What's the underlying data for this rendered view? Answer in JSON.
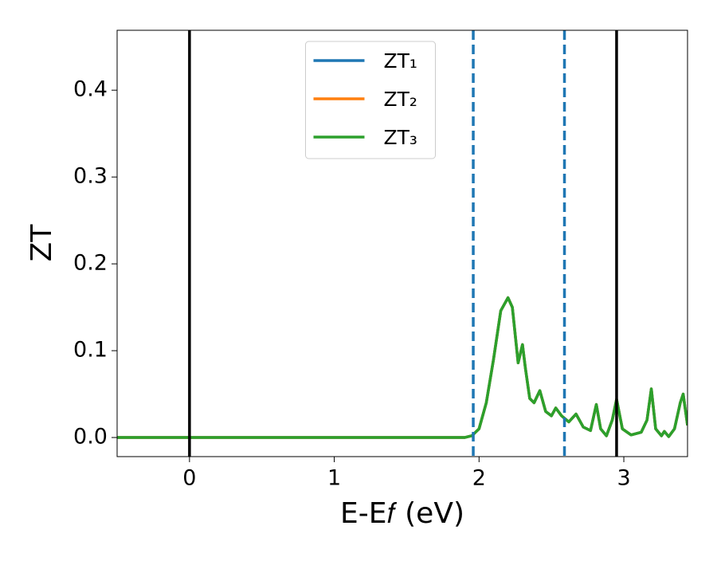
{
  "chart_data": {
    "type": "line",
    "xlabel": "E-E𝑓 (eV)",
    "ylabel": "ZT",
    "x": [
      -0.5,
      0,
      0.5,
      1,
      1.5,
      1.8,
      1.9,
      1.95,
      2.0,
      2.05,
      2.1,
      2.15,
      2.2,
      2.23,
      2.27,
      2.3,
      2.32,
      2.35,
      2.38,
      2.42,
      2.46,
      2.5,
      2.53,
      2.57,
      2.62,
      2.67,
      2.72,
      2.77,
      2.81,
      2.84,
      2.88,
      2.92,
      2.95,
      2.99,
      3.05,
      3.12,
      3.16,
      3.19,
      3.22,
      3.26,
      3.28,
      3.31,
      3.35,
      3.39,
      3.41,
      3.44
    ],
    "series": [
      {
        "name": "ZT₁",
        "color": "#1f77b4",
        "values": [
          0,
          0,
          0,
          0,
          0,
          0,
          0,
          0.002,
          0.01,
          0.04,
          0.09,
          0.146,
          0.161,
          0.15,
          0.086,
          0.107,
          0.08,
          0.045,
          0.04,
          0.054,
          0.03,
          0.025,
          0.034,
          0.025,
          0.018,
          0.027,
          0.012,
          0.008,
          0.038,
          0.01,
          0.002,
          0.02,
          0.044,
          0.01,
          0.003,
          0.006,
          0.02,
          0.056,
          0.01,
          0.002,
          0.007,
          0.001,
          0.01,
          0.04,
          0.05,
          0.014
        ]
      },
      {
        "name": "ZT₂",
        "color": "#ff7f0e",
        "values": [
          0,
          0,
          0,
          0,
          0,
          0,
          0,
          0.002,
          0.01,
          0.04,
          0.09,
          0.146,
          0.161,
          0.15,
          0.086,
          0.107,
          0.08,
          0.045,
          0.04,
          0.054,
          0.03,
          0.025,
          0.034,
          0.025,
          0.018,
          0.027,
          0.012,
          0.008,
          0.038,
          0.01,
          0.002,
          0.02,
          0.044,
          0.01,
          0.003,
          0.006,
          0.02,
          0.056,
          0.01,
          0.002,
          0.007,
          0.001,
          0.01,
          0.04,
          0.05,
          0.014
        ]
      },
      {
        "name": "ZT₃",
        "color": "#2ca02c",
        "values": [
          0,
          0,
          0,
          0,
          0,
          0,
          0,
          0.002,
          0.01,
          0.04,
          0.09,
          0.146,
          0.161,
          0.15,
          0.086,
          0.107,
          0.08,
          0.045,
          0.04,
          0.054,
          0.03,
          0.025,
          0.034,
          0.025,
          0.018,
          0.027,
          0.012,
          0.008,
          0.038,
          0.01,
          0.002,
          0.02,
          0.044,
          0.01,
          0.003,
          0.006,
          0.02,
          0.056,
          0.01,
          0.002,
          0.007,
          0.001,
          0.01,
          0.04,
          0.05,
          0.014
        ]
      }
    ],
    "solid_vlines": [
      0,
      2.95
    ],
    "solid_vline_color": "#000000",
    "dashed_vlines": [
      1.96,
      2.59
    ],
    "dashed_vline_color": "#1f77b4",
    "xlim": [
      -0.5,
      3.44
    ],
    "ylim": [
      -0.022,
      0.469
    ],
    "xticks": [
      0,
      1,
      2,
      3
    ],
    "yticks": [
      {
        "value": 0,
        "label": "0.0"
      },
      0.1,
      0.2,
      0.3,
      0.4
    ],
    "legend": "upper center",
    "grid": false
  }
}
